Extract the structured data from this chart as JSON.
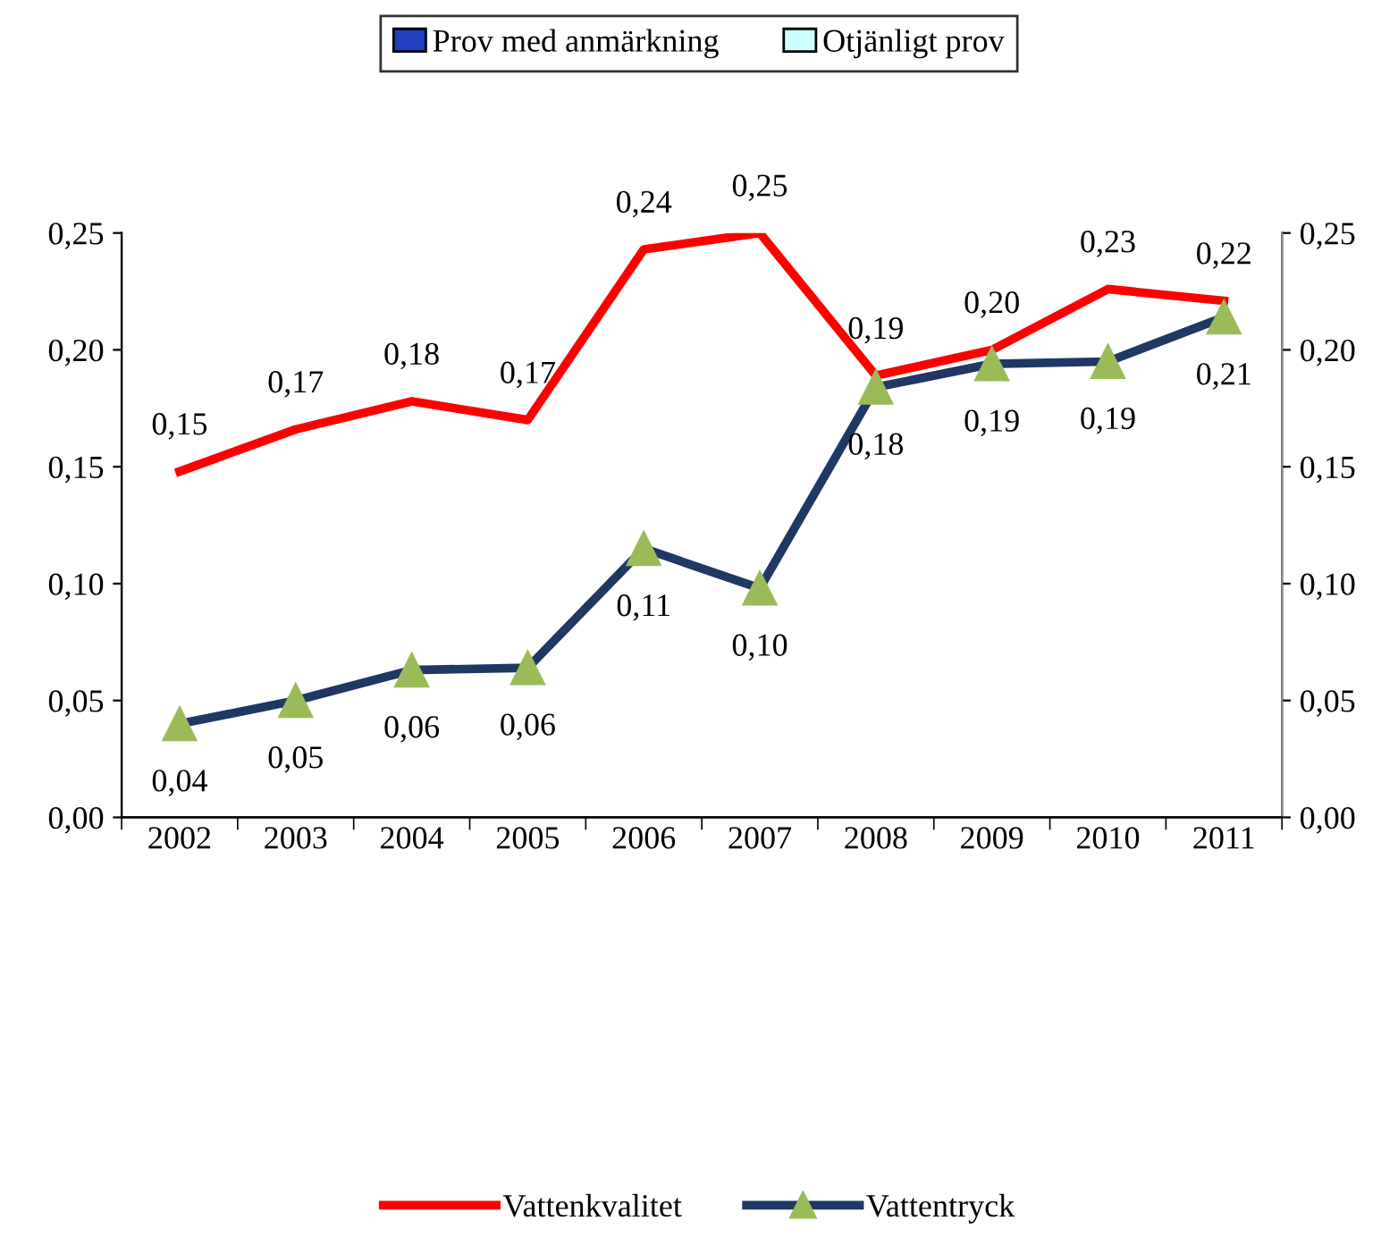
{
  "chart_data": {
    "type": "line",
    "categories": [
      "2002",
      "2003",
      "2004",
      "2005",
      "2006",
      "2007",
      "2008",
      "2009",
      "2010",
      "2011"
    ],
    "series": [
      {
        "name": "Prov med anmärkning",
        "type": "bar",
        "color": "#1f3fbf",
        "values": [
          null,
          null,
          null,
          null,
          null,
          null,
          null,
          null,
          null,
          null
        ]
      },
      {
        "name": "Otjänligt prov",
        "type": "bar",
        "color": "#ccffff",
        "values": [
          null,
          null,
          null,
          null,
          null,
          null,
          null,
          null,
          null,
          null
        ]
      },
      {
        "name": "Vattenkvalitet",
        "color": "#ff0000",
        "values": [
          0.148,
          0.166,
          0.178,
          0.17,
          0.243,
          0.25,
          0.189,
          0.2,
          0.226,
          0.221
        ],
        "value_labels": [
          "0,15",
          "0,17",
          "0,18",
          "0,17",
          "0,24",
          "0,25",
          "0,19",
          "0,20",
          "0,23",
          "0,22"
        ]
      },
      {
        "name": "Vattentryck",
        "color": "#1f3864",
        "marker": "triangle",
        "axis": "y2",
        "values": [
          0.04,
          0.05,
          0.063,
          0.064,
          0.115,
          0.098,
          0.184,
          0.194,
          0.195,
          0.214
        ],
        "value_labels": [
          "0,04",
          "0,05",
          "0,06",
          "0,06",
          "0,11",
          "0,10",
          "0,18",
          "0,19",
          "0,19",
          "0,21"
        ]
      }
    ],
    "ylim": [
      0,
      0.25
    ],
    "yticks": [
      {
        "value": 0,
        "label": "0,00"
      },
      {
        "value": 0.05,
        "label": "0,05"
      },
      {
        "value": 0.1,
        "label": "0,10"
      },
      {
        "value": 0.15,
        "label": "0,15"
      },
      {
        "value": 0.2,
        "label": "0,20"
      },
      {
        "value": 0.25,
        "label": "0,25"
      }
    ],
    "y2lim": [
      0,
      0.25
    ],
    "y2ticks": [
      {
        "value": 0,
        "label": "0,00"
      },
      {
        "value": 0.05,
        "label": "0,05"
      },
      {
        "value": 0.1,
        "label": "0,10"
      },
      {
        "value": 0.15,
        "label": "0,15"
      },
      {
        "value": 0.2,
        "label": "0,20"
      },
      {
        "value": 0.25,
        "label": "0,25"
      }
    ],
    "grid": false,
    "legend": "bottom"
  }
}
